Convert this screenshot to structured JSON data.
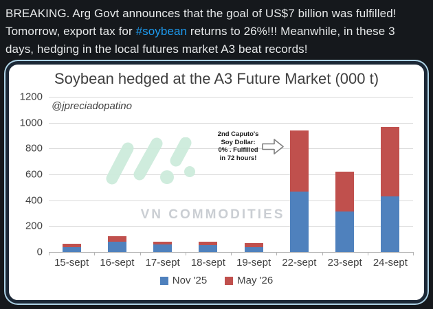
{
  "post": {
    "text_before_hashtag": "BREAKING. Arg Govt announces that the goal of US$7 billion was fulfilled! Tomorrow, export tax for ",
    "hashtag": "#soybean",
    "text_after_hashtag": " returns to 26%!!! Meanwhile, in these 3 days, hedging in the local futures market A3 beat records!",
    "hashtag_color": "#1d9bf0",
    "text_color": "#e7e9ea"
  },
  "chart_card": {
    "title": "Soybean hedged at the A3 Future Market (000 t)",
    "watermark_handle": "@jpreciadopatino",
    "watermark_brand": "VN COMMODITIES",
    "watermark_logo_color": "#cdebdc",
    "border_color": "#1c2836",
    "outline_color": "#aed3e6"
  },
  "chart_data": {
    "type": "bar",
    "stacked": true,
    "title": "Soybean hedged at the A3 Future Market (000 t)",
    "categories": [
      "15-sept",
      "16-sept",
      "17-sept",
      "18-sept",
      "19-sept",
      "22-sept",
      "23-sept",
      "24-sept"
    ],
    "series": [
      {
        "name": "Nov '25",
        "color": "#4f81bd",
        "values": [
          38,
          82,
          60,
          52,
          35,
          465,
          315,
          430
        ]
      },
      {
        "name": "May '26",
        "color": "#c0504d",
        "values": [
          25,
          40,
          22,
          30,
          33,
          475,
          305,
          535
        ]
      }
    ],
    "xlabel": "",
    "ylabel": "",
    "ylim": [
      0,
      1200
    ],
    "ytick_step": 200,
    "grid": true,
    "legend_position": "bottom",
    "annotation": {
      "lines": [
        "2nd Caputo's",
        "Soy Dollar:",
        "0% . Fulfilled",
        "in 72 hours!"
      ],
      "points_to": "22-sept"
    }
  }
}
